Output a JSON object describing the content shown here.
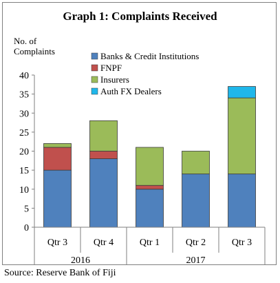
{
  "chart_data": {
    "type": "bar",
    "stacked": true,
    "title": "Graph 1: Complaints Received",
    "ylabel_lines": [
      "No. of",
      "Complaints"
    ],
    "xlabel": "",
    "ylim": [
      0,
      40
    ],
    "yticks": [
      0,
      5,
      10,
      15,
      20,
      25,
      30,
      35,
      40
    ],
    "grid": false,
    "legend_position": "top-right",
    "categories": [
      "Qtr 3",
      "Qtr 4",
      "Qtr 1",
      "Qtr 2",
      "Qtr 3"
    ],
    "year_groups": [
      {
        "label": "2016",
        "span": [
          0,
          1
        ]
      },
      {
        "label": "2017",
        "span": [
          2,
          4
        ]
      }
    ],
    "series": [
      {
        "name": "Banks & Credit Institutions",
        "color": "#4f81bd",
        "values": [
          15,
          18,
          10,
          14,
          14
        ]
      },
      {
        "name": "FNPF",
        "color": "#c0504d",
        "values": [
          6,
          2,
          1,
          0,
          0
        ]
      },
      {
        "name": "Insurers",
        "color": "#9bbb59",
        "values": [
          1,
          8,
          10,
          6,
          20
        ]
      },
      {
        "name": "Auth FX Dealers",
        "color": "#1fb7ea",
        "values": [
          0,
          0,
          0,
          0,
          3
        ]
      }
    ]
  },
  "source": "Source: Reserve Bank of Fiji"
}
